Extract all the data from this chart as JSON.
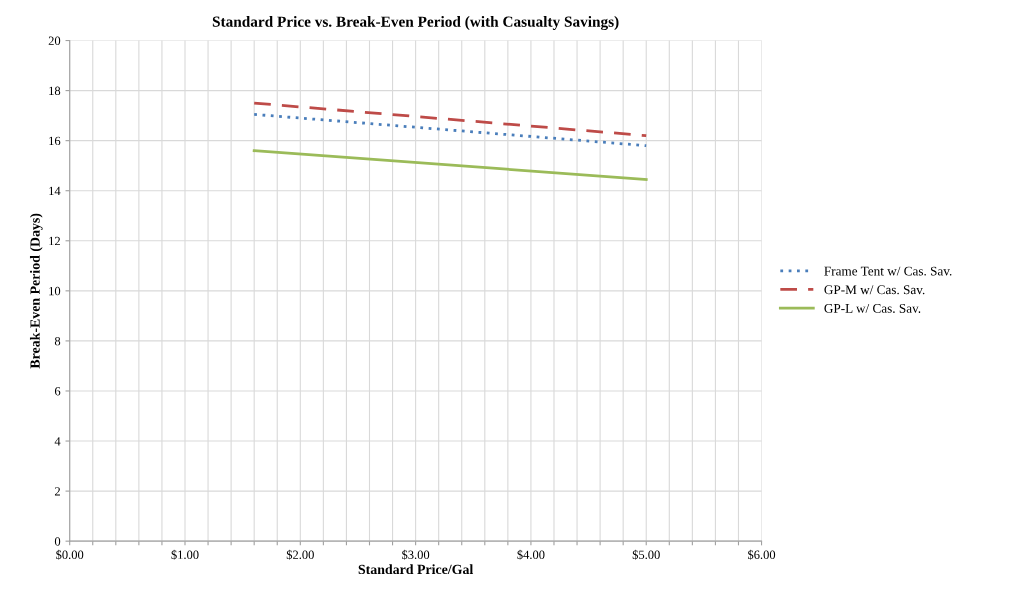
{
  "chart_data": {
    "type": "line",
    "title": "Standard Price vs. Break-Even Period (with Casualty Savings)",
    "xlabel": "Standard Price/Gal",
    "ylabel": "Break-Even Period (Days)",
    "x": [
      1.6,
      5.0
    ],
    "series": [
      {
        "name": "Frame Tent w/ Cas. Sav.",
        "color": "#4a7ebb",
        "line_style": "dotted",
        "values": [
          17.05,
          15.8
        ]
      },
      {
        "name": "GP-M w/ Cas. Sav.",
        "color": "#be4b48",
        "line_style": "dashed",
        "values": [
          17.5,
          16.2
        ]
      },
      {
        "name": "GP-L w/ Cas. Sav.",
        "color": "#9bbb59",
        "line_style": "solid",
        "values": [
          15.6,
          14.45
        ]
      }
    ],
    "xlim": [
      0,
      6
    ],
    "ylim": [
      0,
      20
    ],
    "xticks": [
      {
        "value": 0,
        "label": "$0.00"
      },
      {
        "value": 0.2,
        "label": null
      },
      {
        "value": 0.4,
        "label": null
      },
      {
        "value": 0.6,
        "label": null
      },
      {
        "value": 0.8,
        "label": null
      },
      {
        "value": 1,
        "label": "$1.00"
      },
      {
        "value": 1.2,
        "label": null
      },
      {
        "value": 1.4,
        "label": null
      },
      {
        "value": 1.6,
        "label": null
      },
      {
        "value": 1.8,
        "label": null
      },
      {
        "value": 2,
        "label": "$2.00"
      },
      {
        "value": 2.2,
        "label": null
      },
      {
        "value": 2.4,
        "label": null
      },
      {
        "value": 2.6,
        "label": null
      },
      {
        "value": 2.8,
        "label": null
      },
      {
        "value": 3,
        "label": "$3.00"
      },
      {
        "value": 3.2,
        "label": null
      },
      {
        "value": 3.4,
        "label": null
      },
      {
        "value": 3.6,
        "label": null
      },
      {
        "value": 3.8,
        "label": null
      },
      {
        "value": 4,
        "label": "$4.00"
      },
      {
        "value": 4.2,
        "label": null
      },
      {
        "value": 4.4,
        "label": null
      },
      {
        "value": 4.6,
        "label": null
      },
      {
        "value": 4.8,
        "label": null
      },
      {
        "value": 5,
        "label": "$5.00"
      },
      {
        "value": 5.2,
        "label": null
      },
      {
        "value": 5.4,
        "label": null
      },
      {
        "value": 5.6,
        "label": null
      },
      {
        "value": 5.8,
        "label": null
      },
      {
        "value": 6,
        "label": "$6.00"
      }
    ],
    "yticks": [
      0,
      2,
      4,
      6,
      8,
      10,
      12,
      14,
      16,
      18,
      20
    ],
    "grid": true,
    "legend": "right",
    "marker": "none"
  }
}
